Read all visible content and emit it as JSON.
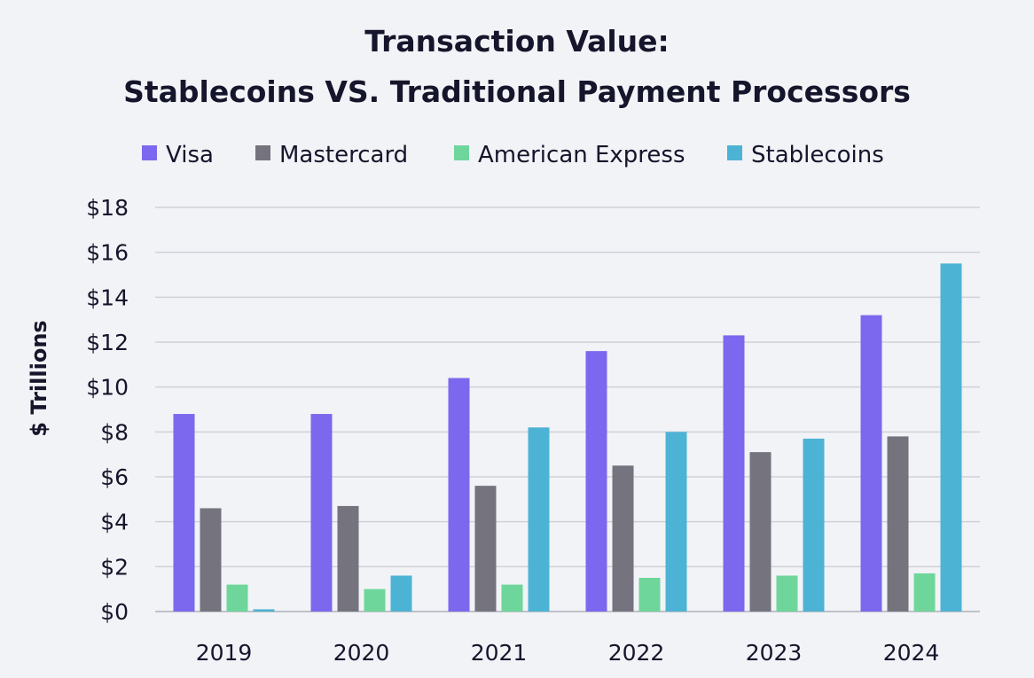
{
  "chart_data": {
    "type": "bar",
    "title": "Transaction Value:",
    "subtitle": "Stablecoins VS. Traditional Payment Processors",
    "xlabel": "",
    "ylabel": "$ Trillions",
    "categories": [
      "2019",
      "2020",
      "2021",
      "2022",
      "2023",
      "2024"
    ],
    "y_ticks": [
      "$0",
      "$2",
      "$4",
      "$6",
      "$8",
      "$10",
      "$12",
      "$14",
      "$16",
      "$18"
    ],
    "ylim": [
      0,
      18
    ],
    "grid": true,
    "legend_position": "top",
    "series": [
      {
        "name": "Visa",
        "color": "#7b68ee",
        "values": [
          8.8,
          8.8,
          10.4,
          11.6,
          12.3,
          13.2
        ]
      },
      {
        "name": "Mastercard",
        "color": "#74737e",
        "values": [
          4.6,
          4.7,
          5.6,
          6.5,
          7.1,
          7.8
        ]
      },
      {
        "name": "American Express",
        "color": "#6fd69b",
        "values": [
          1.2,
          1.0,
          1.2,
          1.5,
          1.6,
          1.7
        ]
      },
      {
        "name": "Stablecoins",
        "color": "#4db3d4",
        "values": [
          0.1,
          1.6,
          8.2,
          8.0,
          7.7,
          15.5
        ]
      }
    ]
  }
}
